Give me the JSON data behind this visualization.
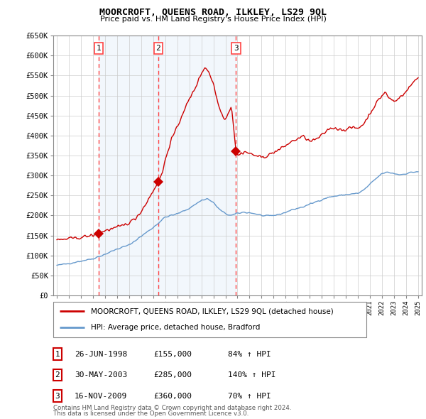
{
  "title": "MOORCROFT, QUEENS ROAD, ILKLEY, LS29 9QL",
  "subtitle": "Price paid vs. HM Land Registry's House Price Index (HPI)",
  "legend_line1": "MOORCROFT, QUEENS ROAD, ILKLEY, LS29 9QL (detached house)",
  "legend_line2": "HPI: Average price, detached house, Bradford",
  "footer1": "Contains HM Land Registry data © Crown copyright and database right 2024.",
  "footer2": "This data is licensed under the Open Government Licence v3.0.",
  "sale_entries": [
    {
      "num": 1,
      "date": "26-JUN-1998",
      "price": "£155,000",
      "pct": "84% ↑ HPI"
    },
    {
      "num": 2,
      "date": "30-MAY-2003",
      "price": "£285,000",
      "pct": "140% ↑ HPI"
    },
    {
      "num": 3,
      "date": "16-NOV-2009",
      "price": "£360,000",
      "pct": "70% ↑ HPI"
    }
  ],
  "sale_years": [
    1998.48,
    2003.41,
    2009.88
  ],
  "sale_prices": [
    155000,
    285000,
    360000
  ],
  "ylim": [
    0,
    650000
  ],
  "xlim": [
    1994.7,
    2025.3
  ],
  "red_color": "#cc0000",
  "blue_color": "#6699cc",
  "dashed_color": "#ff4444",
  "shade_color": "#ddeeff",
  "yticks": [
    0,
    50000,
    100000,
    150000,
    200000,
    250000,
    300000,
    350000,
    400000,
    450000,
    500000,
    550000,
    600000,
    650000
  ],
  "ytick_labels": [
    "£0",
    "£50K",
    "£100K",
    "£150K",
    "£200K",
    "£250K",
    "£300K",
    "£350K",
    "£400K",
    "£450K",
    "£500K",
    "£550K",
    "£600K",
    "£650K"
  ]
}
